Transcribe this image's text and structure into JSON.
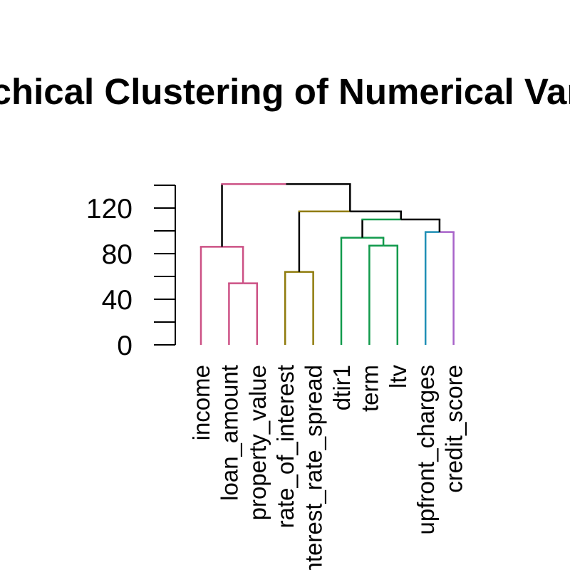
{
  "chart_data": {
    "type": "dendrogram",
    "title": "Hierarchical Clustering of Numerical Variables",
    "ylim": [
      0,
      140
    ],
    "y_ticks": [
      0,
      40,
      80,
      120
    ],
    "leaves": [
      "income",
      "loan_amount",
      "property_value",
      "rate_of_interest",
      "interest_rate_spread",
      "dtir1",
      "term",
      "ltv",
      "upfront_charges",
      "credit_score"
    ],
    "merges": [
      {
        "id": "m1",
        "height": 54,
        "children": [
          "loan_amount",
          "property_value"
        ],
        "color": "#CC5185"
      },
      {
        "id": "m2",
        "height": 64,
        "children": [
          "rate_of_interest",
          "interest_rate_spread"
        ],
        "color": "#8F7B0C"
      },
      {
        "id": "m3",
        "height": 87,
        "children": [
          "term",
          "ltv"
        ],
        "color": "#119A4C"
      },
      {
        "id": "m4",
        "height": 86,
        "children": [
          "income",
          "m1"
        ],
        "color": "#CC5185"
      },
      {
        "id": "m5",
        "height": 94,
        "children": [
          "dtir1",
          "m3"
        ],
        "color": "#119A4C"
      },
      {
        "id": "m6",
        "height": 99,
        "children": [
          "upfront_charges",
          "credit_score"
        ],
        "color": "#000000",
        "child_colors": [
          "#1F8FB5",
          "#A863C9"
        ],
        "bar_colors": [
          "#1F8FB5",
          "#A863C9"
        ]
      },
      {
        "id": "m7",
        "height": 110,
        "children": [
          "m5",
          "m6"
        ],
        "color": "#000000",
        "bar_colors": [
          "#119A4C",
          "#000000"
        ]
      },
      {
        "id": "m8",
        "height": 117,
        "children": [
          "m2",
          "m7"
        ],
        "color": "#000000",
        "bar_colors": [
          "#8F7B0C",
          "#000000"
        ]
      },
      {
        "id": "m9",
        "height": 141,
        "children": [
          "m4",
          "m8"
        ],
        "color": "#000000",
        "bar_colors": [
          "#CC5185",
          "#000000"
        ]
      }
    ]
  }
}
